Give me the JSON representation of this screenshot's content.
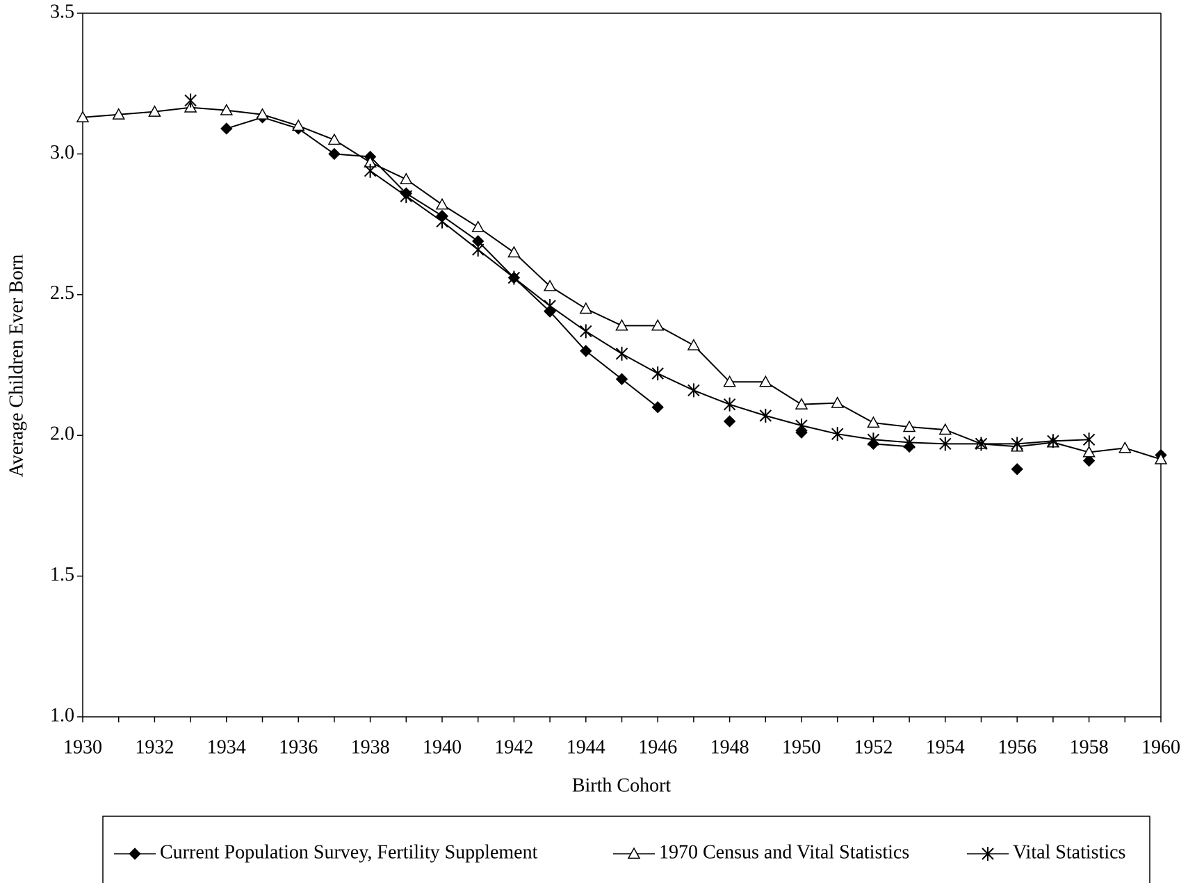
{
  "chart_data": {
    "type": "line",
    "x_label": "Birth Cohort",
    "y_label": "Average Children Ever Born",
    "x": [
      1930,
      1931,
      1932,
      1933,
      1934,
      1935,
      1936,
      1937,
      1938,
      1939,
      1940,
      1941,
      1942,
      1943,
      1944,
      1945,
      1946,
      1947,
      1948,
      1949,
      1950,
      1951,
      1952,
      1953,
      1954,
      1955,
      1956,
      1957,
      1958,
      1959,
      1960
    ],
    "series": [
      {
        "name": "Current Population Survey, Fertility Supplement",
        "color": "#000000",
        "marker": "diamond",
        "values": [
          null,
          null,
          null,
          null,
          3.09,
          3.13,
          3.09,
          3.0,
          2.99,
          2.86,
          2.78,
          2.69,
          2.56,
          2.44,
          2.3,
          2.2,
          2.1,
          null,
          2.05,
          null,
          2.01,
          null,
          1.97,
          1.96,
          null,
          null,
          1.88,
          null,
          1.91,
          null,
          1.93
        ]
      },
      {
        "name": "1970 Census and Vital Statistics",
        "color": "#000000",
        "marker": "triangle",
        "values": [
          3.13,
          3.14,
          3.15,
          3.165,
          3.155,
          3.14,
          3.1,
          3.05,
          2.97,
          2.91,
          2.82,
          2.74,
          2.65,
          2.53,
          2.45,
          2.39,
          2.39,
          2.32,
          2.19,
          2.19,
          2.11,
          2.115,
          2.045,
          2.03,
          2.02,
          1.97,
          1.96,
          1.975,
          1.94,
          1.955,
          1.915
        ]
      },
      {
        "name": "Vital Statistics",
        "color": "#000000",
        "marker": "star",
        "values": [
          null,
          null,
          null,
          3.19,
          null,
          null,
          null,
          null,
          2.94,
          2.85,
          2.76,
          2.66,
          2.56,
          2.46,
          2.37,
          2.29,
          2.22,
          2.16,
          2.11,
          2.07,
          2.035,
          2.005,
          1.985,
          1.975,
          1.97,
          1.97,
          1.97,
          1.98,
          1.985,
          null,
          null
        ]
      }
    ],
    "xlim": [
      1930,
      1960
    ],
    "xticks": [
      1930,
      1932,
      1934,
      1936,
      1938,
      1940,
      1942,
      1944,
      1946,
      1948,
      1950,
      1952,
      1954,
      1956,
      1958,
      1960
    ],
    "ylim": [
      1.0,
      3.5
    ],
    "yticks": [
      {
        "value": 1.0,
        "label": "1.0"
      },
      1.5,
      {
        "value": 2.0,
        "label": "2.0"
      },
      2.5,
      {
        "value": 3.0,
        "label": "3.0"
      },
      3.5
    ],
    "legend": "bottom"
  }
}
